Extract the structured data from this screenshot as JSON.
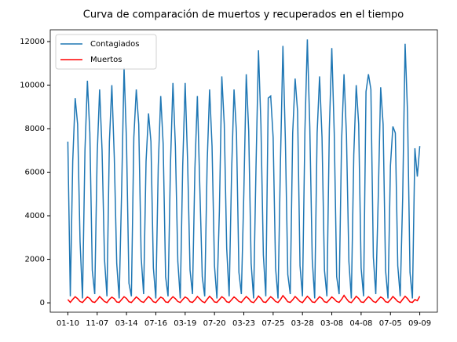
{
  "chart_data": {
    "type": "line",
    "title": "Curva de comparación de muertos y recuperados en el tiempo",
    "categories": [
      "01-10",
      null,
      null,
      null,
      null,
      null,
      null,
      null,
      null,
      null,
      null,
      null,
      "11-07",
      null,
      null,
      null,
      null,
      null,
      null,
      null,
      null,
      null,
      null,
      null,
      "03-14",
      null,
      null,
      null,
      null,
      null,
      null,
      null,
      null,
      null,
      null,
      null,
      "07-16",
      null,
      null,
      null,
      null,
      null,
      null,
      null,
      null,
      null,
      null,
      null,
      "03-19",
      null,
      null,
      null,
      null,
      null,
      null,
      null,
      null,
      null,
      null,
      null,
      "07-20",
      null,
      null,
      null,
      null,
      null,
      null,
      null,
      null,
      null,
      null,
      null,
      "03-23",
      null,
      null,
      null,
      null,
      null,
      null,
      null,
      null,
      null,
      null,
      null,
      "07-25",
      null,
      null,
      null,
      null,
      null,
      null,
      null,
      null,
      null,
      null,
      null,
      "03-28",
      null,
      null,
      null,
      null,
      null,
      null,
      null,
      null,
      null,
      null,
      null,
      "03-08",
      null,
      null,
      null,
      null,
      null,
      null,
      null,
      null,
      null,
      null,
      null,
      "04-08",
      null,
      null,
      null,
      null,
      null,
      null,
      null,
      null,
      null,
      null,
      null,
      "07-05",
      null,
      null,
      null,
      null,
      null,
      null,
      null,
      null,
      null,
      null,
      null,
      "09-09"
    ],
    "series": [
      {
        "name": "Contagiados",
        "color": "#1f77b4",
        "values": [
          7400,
          300,
          6500,
          9400,
          8200,
          2800,
          200,
          7000,
          10200,
          7800,
          1500,
          400,
          6800,
          9800,
          7000,
          2000,
          300,
          7400,
          10000,
          6700,
          1800,
          200,
          5100,
          10800,
          7400,
          900,
          300,
          7600,
          9800,
          8200,
          2100,
          400,
          6500,
          8700,
          7400,
          1600,
          200,
          6300,
          9500,
          7300,
          1200,
          300,
          6400,
          10100,
          7200,
          1900,
          200,
          6300,
          10100,
          6500,
          1500,
          400,
          6200,
          9500,
          5300,
          1200,
          300,
          6400,
          9800,
          7200,
          1700,
          200,
          4200,
          10400,
          8200,
          2500,
          300,
          6000,
          9800,
          7800,
          1400,
          400,
          5000,
          10500,
          7900,
          1800,
          200,
          6300,
          11600,
          8200,
          2200,
          300,
          9400,
          9500,
          7600,
          1600,
          200,
          6500,
          11800,
          7500,
          1300,
          400,
          7800,
          10300,
          8800,
          1700,
          300,
          7900,
          12100,
          8100,
          2000,
          200,
          7800,
          10400,
          7600,
          1500,
          300,
          8000,
          11700,
          7800,
          1200,
          400,
          7400,
          10500,
          7700,
          1900,
          200,
          6800,
          10000,
          8200,
          1600,
          300,
          9700,
          10500,
          9800,
          2100,
          400,
          4800,
          9900,
          8200,
          1500,
          200,
          6300,
          8100,
          7800,
          1700,
          300,
          4800,
          11900,
          8700,
          1400,
          200,
          7100,
          5800,
          7200
        ]
      },
      {
        "name": "Muertos",
        "color": "#ff0000",
        "values": [
          150,
          20,
          160,
          280,
          190,
          60,
          15,
          150,
          270,
          200,
          50,
          20,
          140,
          290,
          180,
          60,
          10,
          160,
          260,
          190,
          40,
          20,
          150,
          280,
          200,
          50,
          15,
          140,
          270,
          180,
          60,
          20,
          160,
          290,
          190,
          50,
          10,
          150,
          260,
          200,
          40,
          20,
          160,
          280,
          190,
          60,
          15,
          150,
          270,
          200,
          50,
          20,
          140,
          290,
          180,
          60,
          10,
          160,
          300,
          190,
          40,
          20,
          150,
          280,
          200,
          50,
          15,
          140,
          270,
          180,
          60,
          20,
          160,
          290,
          190,
          50,
          10,
          150,
          310,
          200,
          40,
          20,
          160,
          280,
          190,
          60,
          15,
          150,
          330,
          200,
          50,
          20,
          140,
          290,
          180,
          60,
          10,
          160,
          300,
          190,
          40,
          20,
          150,
          280,
          200,
          50,
          15,
          140,
          270,
          180,
          60,
          20,
          160,
          340,
          190,
          50,
          10,
          150,
          300,
          200,
          40,
          20,
          160,
          280,
          190,
          60,
          15,
          150,
          270,
          200,
          50,
          20,
          140,
          290,
          180,
          60,
          10,
          160,
          300,
          190,
          40,
          20,
          150,
          100,
          300
        ]
      }
    ],
    "xlim": [
      -7.2,
      151.2
    ],
    "ylim": [
      -430,
      12540
    ],
    "yticks": [
      0,
      2000,
      4000,
      6000,
      8000,
      10000,
      12000
    ],
    "legend": "upper left"
  }
}
